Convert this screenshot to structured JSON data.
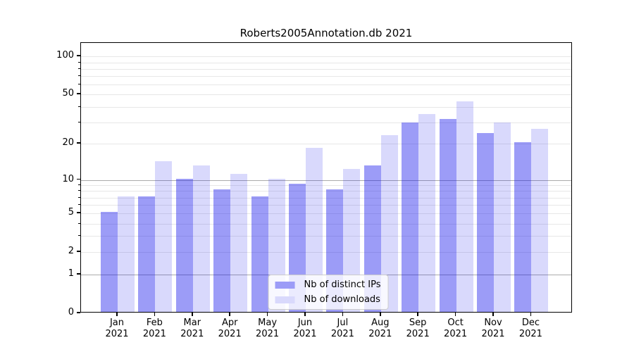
{
  "figure_title": "Roberts2005Annotation.db 2021",
  "chart_data": {
    "type": "bar",
    "title": "Roberts2005Annotation.db 2021",
    "categories": [
      "Jan 2021",
      "Feb 2021",
      "Mar 2021",
      "Apr 2021",
      "May 2021",
      "Jun 2021",
      "Jul 2021",
      "Aug 2021",
      "Sep 2021",
      "Oct 2021",
      "Nov 2021",
      "Dec 2021"
    ],
    "series": [
      {
        "name": "Nb of distinct IPs",
        "color": "rgba(20,20,235,0.42)",
        "legend_color": "#9c9cf7",
        "values": [
          5,
          7,
          10,
          8,
          7,
          9,
          8,
          13,
          29,
          31,
          24,
          20
        ]
      },
      {
        "name": "Nb of downloads",
        "color": "rgba(20,20,235,0.16)",
        "legend_color": "#d9d9fc",
        "values": [
          7,
          14,
          13,
          11,
          10,
          18,
          12,
          23,
          34,
          43,
          29,
          26
        ]
      }
    ],
    "xlabel": "",
    "ylabel": "",
    "yscale": "log10(1+x)",
    "ylim": [
      0,
      127
    ],
    "yticks": [
      0,
      1,
      2,
      5,
      10,
      20,
      50,
      100
    ],
    "grid": "on",
    "grid_major_lines": [
      1,
      10
    ],
    "grid_minor_lines": [
      2,
      3,
      4,
      5,
      6,
      7,
      8,
      9,
      20,
      30,
      40,
      50,
      60,
      70,
      80,
      90,
      100
    ],
    "legend_position": "lower center"
  },
  "legend": {
    "items": [
      {
        "label": "Nb of distinct IPs",
        "swatch": "#9c9cf7"
      },
      {
        "label": "Nb of downloads",
        "swatch": "#d9d9fc"
      }
    ]
  },
  "colors": {
    "background": "#ffffff",
    "spine": "#000000",
    "text": "#000000",
    "grid_major": "#ababab",
    "grid_minor": "#e7e7e7",
    "legend_border": "#cccccc",
    "bar_dark": "#9c9cf7",
    "bar_light": "#d9d9fc"
  }
}
